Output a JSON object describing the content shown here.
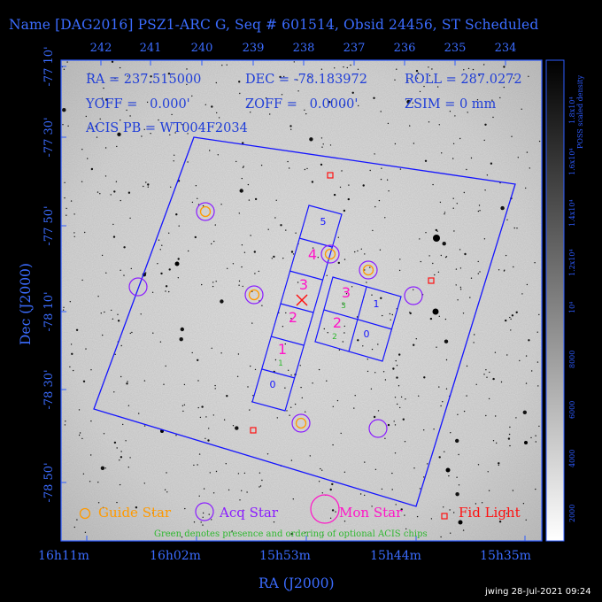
{
  "title": "Name [DAG2016] PSZ1-ARC G, Seq # 601514, Obsid 24456, ST Scheduled",
  "ra_top_ticks": [
    "242",
    "241",
    "240",
    "239",
    "238",
    "237",
    "236",
    "235",
    "234"
  ],
  "ra_bottom_ticks": [
    "16h11m",
    "16h02m",
    "15h53m",
    "15h44m",
    "15h35m"
  ],
  "dec_ticks": [
    "-77 10'",
    "-77 30'",
    "-77 50'",
    "-78 10'",
    "-78 30'",
    "-78 50'"
  ],
  "xlabel": "RA (J2000)",
  "ylabel": "Dec (J2000)",
  "info": {
    "ra": "RA = 237.515000",
    "dec": "DEC = -78.183972",
    "roll": "ROLL = 287.0272",
    "yoff": "YOFF =   0.000'",
    "zoff": "ZOFF =   0.0000'",
    "zsim": "ZSIM = 0 mm",
    "acis_pb": "ACIS PB = WT004F2034"
  },
  "colorbar": {
    "label": "POSS scaled density",
    "ticks": [
      "2000",
      "4000",
      "6000",
      "8000",
      "10⁴",
      "1.2x10⁴",
      "1.4x10⁴",
      "1.6x10⁴",
      "1.8x10⁴"
    ]
  },
  "chips": {
    "s_array": [
      "5",
      "4",
      "3",
      "2",
      "1",
      "0"
    ],
    "s_optional": [
      "1"
    ],
    "i_array": [
      "3",
      "1",
      "2",
      "0"
    ],
    "i_optional": [
      "3",
      "2"
    ]
  },
  "legend": {
    "guide": "Guide Star",
    "acq": "Acq Star",
    "mon": "Mon Star",
    "fid": "Fid Light",
    "note": "Green denotes presence and ordering of optional ACIS chips"
  },
  "credit": "jwing 28-Jul-2021 09:24",
  "colors": {
    "frame": "#1515ff",
    "guide": "#ff9a00",
    "acq": "#8a1cff",
    "mon": "#ff14c8",
    "fid": "#ff1010",
    "optional": "#2fb82f"
  }
}
